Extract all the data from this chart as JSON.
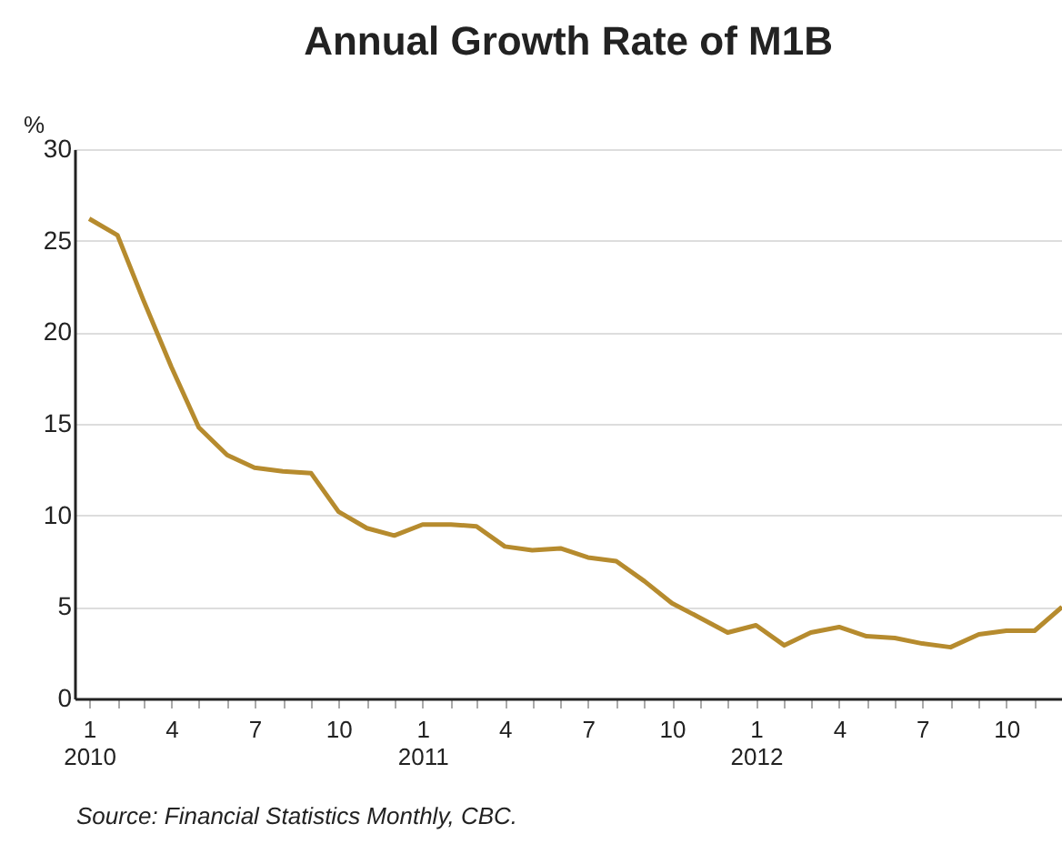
{
  "chart_data": {
    "type": "line",
    "title": "Annual Growth Rate of M1B",
    "ylabel": "%",
    "x": [
      "2010-01",
      "2010-02",
      "2010-03",
      "2010-04",
      "2010-05",
      "2010-06",
      "2010-07",
      "2010-08",
      "2010-09",
      "2010-10",
      "2010-11",
      "2010-12",
      "2011-01",
      "2011-02",
      "2011-03",
      "2011-04",
      "2011-05",
      "2011-06",
      "2011-07",
      "2011-08",
      "2011-09",
      "2011-10",
      "2011-11",
      "2011-12",
      "2012-01",
      "2012-02",
      "2012-03",
      "2012-04",
      "2012-05",
      "2012-06",
      "2012-07",
      "2012-08",
      "2012-09",
      "2012-10",
      "2012-11",
      "2012-12"
    ],
    "series": [
      {
        "color": "#b68b2e",
        "values": [
          26.2,
          25.3,
          21.8,
          18.1,
          14.8,
          13.3,
          12.6,
          12.4,
          12.3,
          10.2,
          9.3,
          8.9,
          9.5,
          9.5,
          9.4,
          8.3,
          8.1,
          8.2,
          7.7,
          7.5,
          6.4,
          5.2,
          4.4,
          3.6,
          4.0,
          2.9,
          3.6,
          3.9,
          3.4,
          3.3,
          3.0,
          2.8,
          3.5,
          3.7,
          3.7,
          5.0
        ]
      }
    ],
    "xlim": [
      "2009-12-16",
      "2012-12"
    ],
    "xticks": [
      {
        "value": "2010-01",
        "label": "1\n2010"
      },
      {
        "value": "2010-02",
        "label": null
      },
      {
        "value": "2010-03",
        "label": null
      },
      {
        "value": "2010-04",
        "label": "4"
      },
      {
        "value": "2010-05",
        "label": null
      },
      {
        "value": "2010-06",
        "label": null
      },
      {
        "value": "2010-07",
        "label": "7"
      },
      {
        "value": "2010-08",
        "label": null
      },
      {
        "value": "2010-09",
        "label": null
      },
      {
        "value": "2010-10",
        "label": "10"
      },
      {
        "value": "2010-11",
        "label": null
      },
      {
        "value": "2010-12",
        "label": null
      },
      {
        "value": "2011-01",
        "label": "1\n2011"
      },
      {
        "value": "2011-02",
        "label": null
      },
      {
        "value": "2011-03",
        "label": null
      },
      {
        "value": "2011-04",
        "label": "4"
      },
      {
        "value": "2011-05",
        "label": null
      },
      {
        "value": "2011-06",
        "label": null
      },
      {
        "value": "2011-07",
        "label": "7"
      },
      {
        "value": "2011-08",
        "label": null
      },
      {
        "value": "2011-09",
        "label": null
      },
      {
        "value": "2011-10",
        "label": "10"
      },
      {
        "value": "2011-11",
        "label": null
      },
      {
        "value": "2011-12",
        "label": null
      },
      {
        "value": "2012-01",
        "label": "1\n2012"
      },
      {
        "value": "2012-02",
        "label": null
      },
      {
        "value": "2012-03",
        "label": null
      },
      {
        "value": "2012-04",
        "label": "4"
      },
      {
        "value": "2012-05",
        "label": null
      },
      {
        "value": "2012-06",
        "label": null
      },
      {
        "value": "2012-07",
        "label": "7"
      },
      {
        "value": "2012-08",
        "label": null
      },
      {
        "value": "2012-09",
        "label": null
      },
      {
        "value": "2012-10",
        "label": "10"
      },
      {
        "value": "2012-11",
        "label": null
      },
      {
        "value": "2012-12",
        "label": null
      }
    ],
    "ylim": [
      0,
      30
    ],
    "yticks": [
      0,
      5,
      10,
      15,
      20,
      25,
      30
    ],
    "grid": "y",
    "legend": false,
    "marker": "none",
    "line_style": "solid",
    "annotations": [
      "Source: Financial Statistics Monthly, CBC."
    ]
  }
}
